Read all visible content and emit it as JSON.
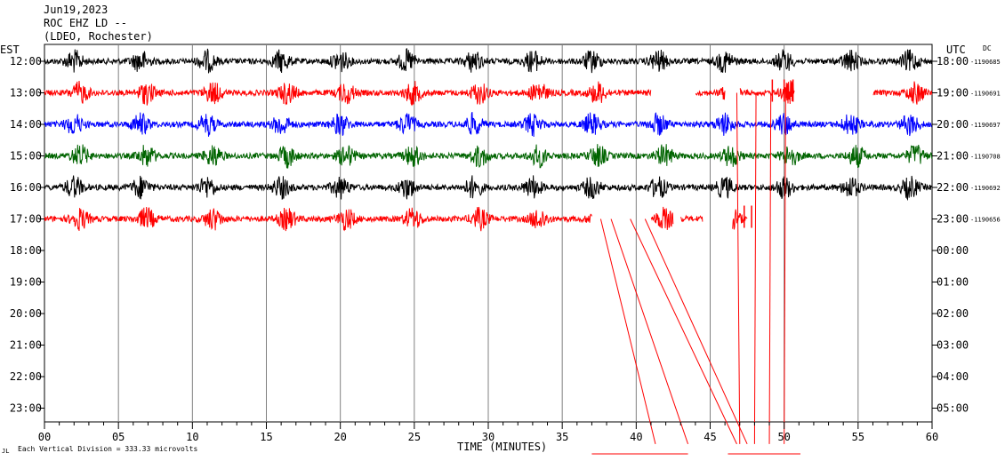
{
  "header": {
    "date": "Jun19,2023",
    "station": "ROC EHZ LD --",
    "network": "(LDEO, Rochester)"
  },
  "labels": {
    "left_tz": "EST",
    "right_tz": "UTC",
    "dc": "DC",
    "xlabel": "TIME (MINUTES)",
    "footer": "Each Vertical Division =  333.33 microvolts"
  },
  "chart_data": {
    "type": "line",
    "title": "",
    "xlabel": "TIME (MINUTES)",
    "xlim": [
      0,
      60
    ],
    "x_ticks": [
      "00",
      "05",
      "10",
      "15",
      "20",
      "25",
      "30",
      "35",
      "40",
      "45",
      "50",
      "55",
      "60"
    ],
    "rows": [
      {
        "est": "12:00",
        "utc": "18:00",
        "dc": "-1190685",
        "color": "#000000",
        "end_min": 60,
        "data": true
      },
      {
        "est": "13:00",
        "utc": "19:00",
        "dc": "-1190691",
        "color": "#ff0000",
        "end_min": 60,
        "data": true
      },
      {
        "est": "14:00",
        "utc": "20:00",
        "dc": "-1190697",
        "color": "#0000ff",
        "end_min": 60,
        "data": true
      },
      {
        "est": "15:00",
        "utc": "21:00",
        "dc": "-1190708",
        "color": "#006400",
        "end_min": 60,
        "data": true
      },
      {
        "est": "16:00",
        "utc": "22:00",
        "dc": "-1190692",
        "color": "#000000",
        "end_min": 60,
        "data": true
      },
      {
        "est": "17:00",
        "utc": "23:00",
        "dc": "-1190656",
        "color": "#ff0000",
        "end_min": 47.5,
        "data": true
      },
      {
        "est": "18:00",
        "utc": "00:00",
        "dc": "",
        "color": "#000000",
        "data": false
      },
      {
        "est": "19:00",
        "utc": "01:00",
        "dc": "",
        "color": "#ff0000",
        "data": false
      },
      {
        "est": "20:00",
        "utc": "02:00",
        "dc": "",
        "color": "#0000ff",
        "data": false
      },
      {
        "est": "21:00",
        "utc": "03:00",
        "dc": "",
        "color": "#006400",
        "data": false
      },
      {
        "est": "22:00",
        "utc": "04:00",
        "dc": "",
        "color": "#000000",
        "data": false
      },
      {
        "est": "23:00",
        "utc": "05:00",
        "dc": "",
        "color": "#ff0000",
        "data": false
      }
    ],
    "gaps": [
      {
        "row": 1,
        "from_min": 41.0,
        "to_min": 44.0
      },
      {
        "row": 1,
        "from_min": 46.0,
        "to_min": 47.0
      },
      {
        "row": 1,
        "from_min": 50.7,
        "to_min": 56.0
      },
      {
        "row": 5,
        "from_min": 37.0,
        "to_min": 41.0
      },
      {
        "row": 5,
        "from_min": 42.5,
        "to_min": 43.0
      },
      {
        "row": 5,
        "from_min": 44.5,
        "to_min": 46.5
      }
    ],
    "burst_minutes": [
      2,
      6.5,
      11,
      16,
      20,
      24.5,
      29,
      33,
      37,
      41.5,
      46,
      50,
      54.5,
      58.5
    ],
    "spikes": [
      {
        "row": 1,
        "min": 49.2
      },
      {
        "row": 1,
        "min": 50.0
      },
      {
        "row": 1,
        "min": 50.6
      },
      {
        "row": 5,
        "min": 47.3
      },
      {
        "row": 5,
        "min": 47.8
      }
    ],
    "glitch_lines": [
      {
        "x1": 37.6,
        "y1_row": 5.0,
        "x2": 41.3,
        "y2_row": 11.7
      },
      {
        "x1": 38.3,
        "y1_row": 5.0,
        "x2": 43.5,
        "y2_row": 11.7
      },
      {
        "x1": 39.6,
        "y1_row": 5.0,
        "x2": 46.8,
        "y2_row": 11.7
      },
      {
        "x1": 40.6,
        "y1_row": 5.0,
        "x2": 47.5,
        "y2_row": 11.7
      },
      {
        "x1": 46.8,
        "y1_row": 1.0,
        "x2": 47.0,
        "y2_row": 11.7
      },
      {
        "x1": 48.1,
        "y1_row": 1.0,
        "x2": 48.0,
        "y2_row": 11.7
      },
      {
        "x1": 49.1,
        "y1_row": 1.0,
        "x2": 49.0,
        "y2_row": 11.7
      },
      {
        "x1": 50.1,
        "y1_row": 1.0,
        "x2": 50.0,
        "y2_row": 11.7
      }
    ]
  }
}
